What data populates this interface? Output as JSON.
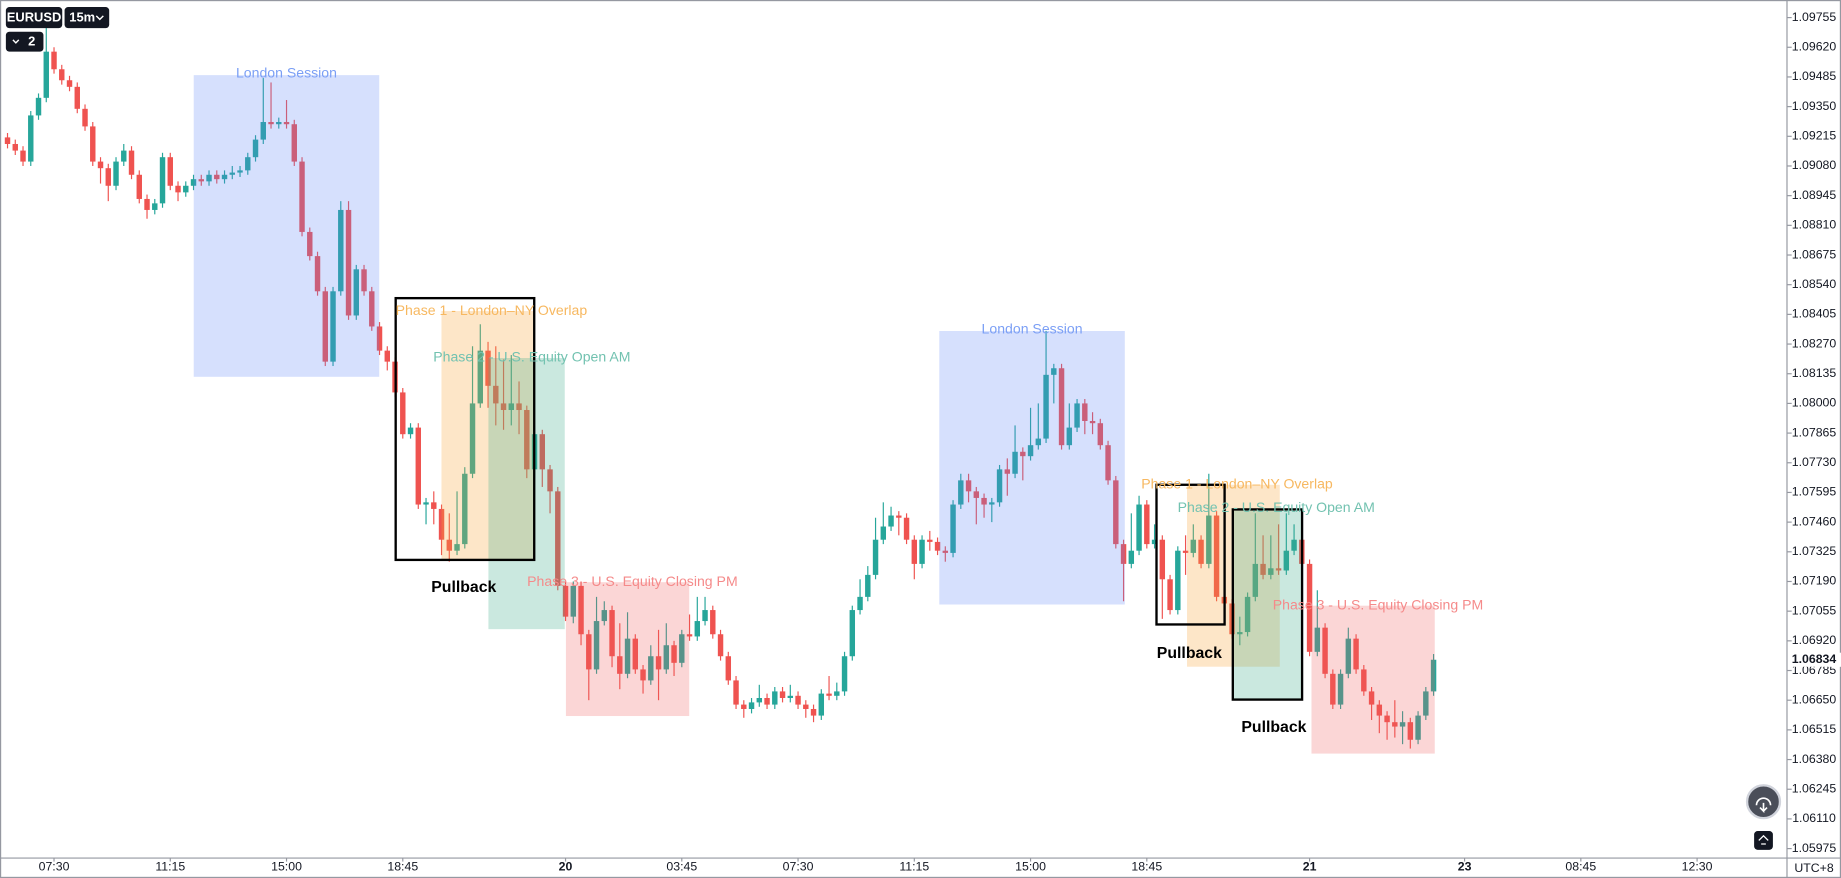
{
  "chart_data": {
    "type": "candlestick",
    "up_color": "#26a69a",
    "down_color": "#ef5350",
    "ylim": [
      1.05932,
      1.09835
    ],
    "yticks": [
      1.05975,
      {
        "value": 1.0611,
        "label": "1.06110"
      },
      1.06245,
      {
        "value": 1.0638,
        "label": "1.06380"
      },
      1.06515,
      {
        "value": 1.0665,
        "label": "1.06650"
      },
      1.06785,
      {
        "value": 1.0692,
        "label": "1.06920"
      },
      1.07055,
      {
        "value": 1.0719,
        "label": "1.07190"
      },
      1.07325,
      {
        "value": 1.0746,
        "label": "1.07460"
      },
      1.07595,
      {
        "value": 1.0773,
        "label": "1.07730"
      },
      1.07865,
      {
        "value": 1.08,
        "label": "1.08000"
      },
      1.08135,
      {
        "value": 1.0827,
        "label": "1.08270"
      },
      1.08405,
      {
        "value": 1.0854,
        "label": "1.08540"
      },
      1.08675,
      {
        "value": 1.0881,
        "label": "1.08810"
      },
      1.08945,
      {
        "value": 1.0908,
        "label": "1.09080"
      },
      1.09215,
      {
        "value": 1.0935,
        "label": "1.09350"
      },
      1.09485,
      {
        "value": 1.0962,
        "label": "1.09620"
      },
      1.09755
    ],
    "xlim": [
      -0.97,
      229.6
    ],
    "xticks": [
      {
        "value": 6,
        "label": "07:30"
      },
      {
        "value": 21,
        "label": "11:15"
      },
      {
        "value": 36,
        "label": "15:00"
      },
      {
        "value": 51,
        "label": "18:45"
      },
      {
        "value": 72,
        "label": "20"
      },
      {
        "value": 87,
        "label": "03:45"
      },
      {
        "value": 102,
        "label": "07:30"
      },
      {
        "value": 117,
        "label": "11:15"
      },
      {
        "value": 132,
        "label": "15:00"
      },
      {
        "value": 147,
        "label": "18:45"
      },
      {
        "value": 168,
        "label": "21"
      },
      {
        "value": 188,
        "label": "23"
      },
      {
        "value": 203,
        "label": "08:45"
      },
      {
        "value": 218,
        "label": "12:30"
      }
    ],
    "open": [
      1.0921,
      1.0918,
      1.0915,
      1.091,
      1.0931,
      1.0939,
      1.096,
      1.0952,
      1.0947,
      1.0944,
      1.0934,
      1.0926,
      1.091,
      1.0907,
      1.0899,
      1.091,
      1.0915,
      1.0904,
      1.0893,
      1.0888,
      1.0891,
      1.0912,
      1.0899,
      1.0896,
      1.0899,
      1.0902,
      1.0901,
      1.0904,
      1.0902,
      1.0904,
      1.0905,
      1.0906,
      1.0912,
      1.092,
      1.0928,
      1.0927,
      1.0928,
      1.0927,
      1.091,
      1.0878,
      1.0867,
      1.0851,
      1.0819,
      1.0851,
      1.0888,
      1.084,
      1.0861,
      1.0851,
      1.0835,
      1.0824,
      1.0819,
      1.0805,
      1.0786,
      1.0789,
      1.0754,
      1.0755,
      1.0752,
      1.0738,
      1.0733,
      1.0736,
      1.0768,
      1.08,
      1.0824,
      1.0808,
      1.08,
      1.0797,
      1.08,
      1.0797,
      1.077,
      1.0786,
      1.077,
      1.076,
      1.0717,
      1.0703,
      1.0717,
      1.0695,
      1.0679,
      1.0701,
      1.0706,
      1.0685,
      1.0677,
      1.0693,
      1.0679,
      1.0674,
      1.0685,
      1.0679,
      1.069,
      1.0682,
      1.0695,
      1.0694,
      1.0701,
      1.0706,
      1.0695,
      1.0685,
      1.0674,
      1.0663,
      1.0661,
      1.0664,
      1.0666,
      1.0663,
      1.0669,
      1.0666,
      1.0667,
      1.0663,
      1.0661,
      1.0658,
      1.0668,
      1.0667,
      1.0669,
      1.0685,
      1.0706,
      1.0712,
      1.0722,
      1.0738,
      1.0744,
      1.0749,
      1.0748,
      1.0738,
      1.0727,
      1.0738,
      1.0737,
      1.0733,
      1.0732,
      1.0754,
      1.0765,
      1.076,
      1.0757,
      1.0754,
      1.0755,
      1.077,
      1.0768,
      1.0778,
      1.0776,
      1.0781,
      1.0784,
      1.0813,
      1.0816,
      1.0781,
      1.0789,
      1.08,
      1.0792,
      1.0791,
      1.0781,
      1.0765,
      1.0736,
      1.0727,
      1.0733,
      1.0754,
      1.0736,
      1.0738,
      1.072,
      1.0706,
      1.0733,
      1.0732,
      1.0738,
      1.0727,
      1.0749,
      1.0712,
      1.0709,
      1.0695,
      1.0696,
      1.0712,
      1.0727,
      1.0722,
      1.0725,
      1.0724,
      1.0733,
      1.0738,
      1.0727,
      1.0687,
      1.0698,
      1.0677,
      1.0663,
      1.0677,
      1.0693,
      1.0679,
      1.0669,
      1.0663,
      1.0658,
      1.0655,
      1.0653,
      1.0655,
      1.0647,
      1.0658,
      1.0669
    ],
    "high": [
      1.0923,
      1.092,
      1.0917,
      1.0933,
      1.0941,
      1.0972,
      1.0962,
      1.0954,
      1.0949,
      1.0946,
      1.0936,
      1.0928,
      1.0912,
      1.0909,
      1.0912,
      1.0918,
      1.0917,
      1.0906,
      1.0895,
      1.0893,
      1.0914,
      1.0914,
      1.0901,
      1.0901,
      1.0904,
      1.0904,
      1.0906,
      1.0906,
      1.0906,
      1.0908,
      1.0908,
      1.0914,
      1.0922,
      1.0948,
      1.0946,
      1.093,
      1.0938,
      1.0929,
      1.0912,
      1.088,
      1.0869,
      1.0853,
      1.0853,
      1.0892,
      1.0892,
      1.0863,
      1.0863,
      1.0853,
      1.0837,
      1.0826,
      1.0821,
      1.0807,
      1.0791,
      1.0791,
      1.0757,
      1.076,
      1.0754,
      1.075,
      1.076,
      1.0771,
      1.0826,
      1.0836,
      1.0828,
      1.0826,
      1.082,
      1.0822,
      1.081,
      1.0799,
      1.079,
      1.0788,
      1.0772,
      1.0762,
      1.0719,
      1.0719,
      1.0719,
      1.0697,
      1.0712,
      1.071,
      1.0708,
      1.07,
      1.0705,
      1.0695,
      1.0681,
      1.069,
      1.0697,
      1.07,
      1.0692,
      1.0697,
      1.0704,
      1.0712,
      1.0712,
      1.0708,
      1.0697,
      1.0687,
      1.0676,
      1.0665,
      1.0666,
      1.0672,
      1.0668,
      1.0671,
      1.0671,
      1.0672,
      1.0669,
      1.0665,
      1.0663,
      1.067,
      1.0676,
      1.0673,
      1.0687,
      1.0708,
      1.072,
      1.0726,
      1.0748,
      1.0755,
      1.0753,
      1.0751,
      1.075,
      1.074,
      1.074,
      1.0742,
      1.0739,
      1.0735,
      1.0756,
      1.0768,
      1.0768,
      1.0762,
      1.0759,
      1.0757,
      1.0772,
      1.0775,
      1.079,
      1.078,
      1.0798,
      1.08,
      1.0833,
      1.0818,
      1.0818,
      1.08,
      1.0802,
      1.0802,
      1.0796,
      1.0793,
      1.0783,
      1.0767,
      1.0738,
      1.075,
      1.0758,
      1.0756,
      1.0745,
      1.074,
      1.0722,
      1.0735,
      1.074,
      1.0745,
      1.074,
      1.0768,
      1.0751,
      1.0714,
      1.0711,
      1.0703,
      1.0714,
      1.075,
      1.074,
      1.074,
      1.0745,
      1.075,
      1.0745,
      1.074,
      1.0729,
      1.0715,
      1.07,
      1.0679,
      1.0679,
      1.0698,
      1.0695,
      1.0681,
      1.0671,
      1.0665,
      1.066,
      1.0665,
      1.066,
      1.0657,
      1.066,
      1.0671,
      1.0686
    ],
    "low": [
      1.0916,
      1.0913,
      1.0908,
      1.0908,
      1.0929,
      1.0937,
      1.095,
      1.0945,
      1.0942,
      1.0932,
      1.0924,
      1.0908,
      1.09,
      1.0892,
      1.0897,
      1.0908,
      1.0902,
      1.0891,
      1.0884,
      1.0886,
      1.0889,
      1.0897,
      1.0892,
      1.0894,
      1.0897,
      1.0899,
      1.0899,
      1.09,
      1.09,
      1.0902,
      1.0903,
      1.0904,
      1.091,
      1.0918,
      1.0925,
      1.0925,
      1.0925,
      1.0908,
      1.0876,
      1.0865,
      1.0849,
      1.0817,
      1.0817,
      1.0849,
      1.0838,
      1.0838,
      1.0849,
      1.0833,
      1.0822,
      1.0815,
      1.0803,
      1.0784,
      1.0784,
      1.0752,
      1.0745,
      1.0745,
      1.0731,
      1.0728,
      1.0731,
      1.0734,
      1.0766,
      1.0798,
      1.0798,
      1.079,
      1.0788,
      1.079,
      1.0786,
      1.0766,
      1.0766,
      1.0762,
      1.075,
      1.0715,
      1.0701,
      1.07,
      1.069,
      1.0665,
      1.0677,
      1.0699,
      1.068,
      1.067,
      1.0675,
      1.0677,
      1.0668,
      1.0672,
      1.0665,
      1.0677,
      1.0676,
      1.068,
      1.0692,
      1.0692,
      1.0699,
      1.0693,
      1.0683,
      1.0672,
      1.0661,
      1.0657,
      1.0659,
      1.0662,
      1.0661,
      1.0661,
      1.0664,
      1.0664,
      1.0661,
      1.0657,
      1.0655,
      1.0656,
      1.0665,
      1.0665,
      1.0667,
      1.0683,
      1.0704,
      1.071,
      1.072,
      1.0736,
      1.0742,
      1.074,
      1.0736,
      1.072,
      1.0725,
      1.0733,
      1.0731,
      1.0728,
      1.073,
      1.0752,
      1.0755,
      1.0745,
      1.0748,
      1.0746,
      1.0753,
      1.0758,
      1.0766,
      1.0765,
      1.0774,
      1.0779,
      1.0782,
      1.08,
      1.0779,
      1.0779,
      1.0787,
      1.0786,
      1.0786,
      1.0779,
      1.0763,
      1.0734,
      1.071,
      1.0725,
      1.0731,
      1.0734,
      1.0734,
      1.0702,
      1.0704,
      1.0704,
      1.0722,
      1.073,
      1.0725,
      1.0725,
      1.071,
      1.0707,
      1.0693,
      1.069,
      1.0694,
      1.071,
      1.072,
      1.072,
      1.0722,
      1.0722,
      1.0731,
      1.072,
      1.0685,
      1.0685,
      1.0675,
      1.0661,
      1.0661,
      1.0675,
      1.0677,
      1.0667,
      1.0656,
      1.065,
      1.0647,
      1.0648,
      1.0645,
      1.0643,
      1.0645,
      1.0656,
      1.0667
    ],
    "close": [
      1.0918,
      1.0915,
      1.091,
      1.0931,
      1.0939,
      1.096,
      1.0952,
      1.0947,
      1.0944,
      1.0934,
      1.0926,
      1.091,
      1.0907,
      1.0899,
      1.091,
      1.0915,
      1.0904,
      1.0893,
      1.0888,
      1.0891,
      1.0912,
      1.0899,
      1.0896,
      1.0899,
      1.0902,
      1.0901,
      1.0904,
      1.0902,
      1.0904,
      1.0905,
      1.0906,
      1.0912,
      1.092,
      1.0928,
      1.0927,
      1.0928,
      1.0927,
      1.091,
      1.0878,
      1.0867,
      1.0851,
      1.0819,
      1.0851,
      1.0888,
      1.084,
      1.0861,
      1.0851,
      1.0835,
      1.0824,
      1.0819,
      1.0805,
      1.0786,
      1.0789,
      1.0754,
      1.0755,
      1.0752,
      1.0738,
      1.0733,
      1.0736,
      1.0768,
      1.08,
      1.0824,
      1.0808,
      1.08,
      1.0797,
      1.08,
      1.0797,
      1.077,
      1.0786,
      1.077,
      1.076,
      1.0717,
      1.0703,
      1.0717,
      1.0695,
      1.0679,
      1.0701,
      1.0706,
      1.0685,
      1.0677,
      1.0693,
      1.0679,
      1.0674,
      1.0685,
      1.0679,
      1.069,
      1.0682,
      1.0695,
      1.0694,
      1.0701,
      1.0706,
      1.0695,
      1.0685,
      1.0674,
      1.0663,
      1.0661,
      1.0664,
      1.0666,
      1.0663,
      1.0669,
      1.0666,
      1.0667,
      1.0663,
      1.0661,
      1.0658,
      1.0668,
      1.0667,
      1.0669,
      1.0685,
      1.0706,
      1.0712,
      1.0722,
      1.0738,
      1.0744,
      1.0749,
      1.0748,
      1.0738,
      1.0727,
      1.0738,
      1.0737,
      1.0733,
      1.0732,
      1.0754,
      1.0765,
      1.076,
      1.0757,
      1.0754,
      1.0755,
      1.077,
      1.0768,
      1.0778,
      1.0776,
      1.0781,
      1.0784,
      1.0813,
      1.0816,
      1.0781,
      1.0789,
      1.08,
      1.0792,
      1.0791,
      1.0781,
      1.0765,
      1.0736,
      1.0727,
      1.0733,
      1.0754,
      1.0736,
      1.0738,
      1.072,
      1.0706,
      1.0733,
      1.0732,
      1.0738,
      1.0727,
      1.0749,
      1.0712,
      1.0709,
      1.0695,
      1.0696,
      1.0712,
      1.0727,
      1.0722,
      1.0725,
      1.0724,
      1.0733,
      1.0738,
      1.0727,
      1.0687,
      1.0698,
      1.0677,
      1.0663,
      1.0677,
      1.0693,
      1.0679,
      1.0669,
      1.0663,
      1.0658,
      1.0655,
      1.0653,
      1.0655,
      1.0647,
      1.0658,
      1.0669,
      1.06834
    ],
    "annotations": [
      "London Session",
      "Phase 1 - London–NY Overlap",
      "Phase 2 - U.S. Equity Open AM",
      "Phase 3 - U.S. Equity Closing PM",
      "Pullback",
      "London Session",
      "Phase 1 - London–NY Overlap",
      "Phase 2 - U.S. Equity Open AM",
      "Phase 3 - U.S. Equity Closing PM",
      "Pullback",
      "Pullback"
    ]
  },
  "toolbar": {
    "symbol": "EURUSD",
    "interval": "15m",
    "indicator_count": 2
  },
  "timezone": "UTC+8"
}
